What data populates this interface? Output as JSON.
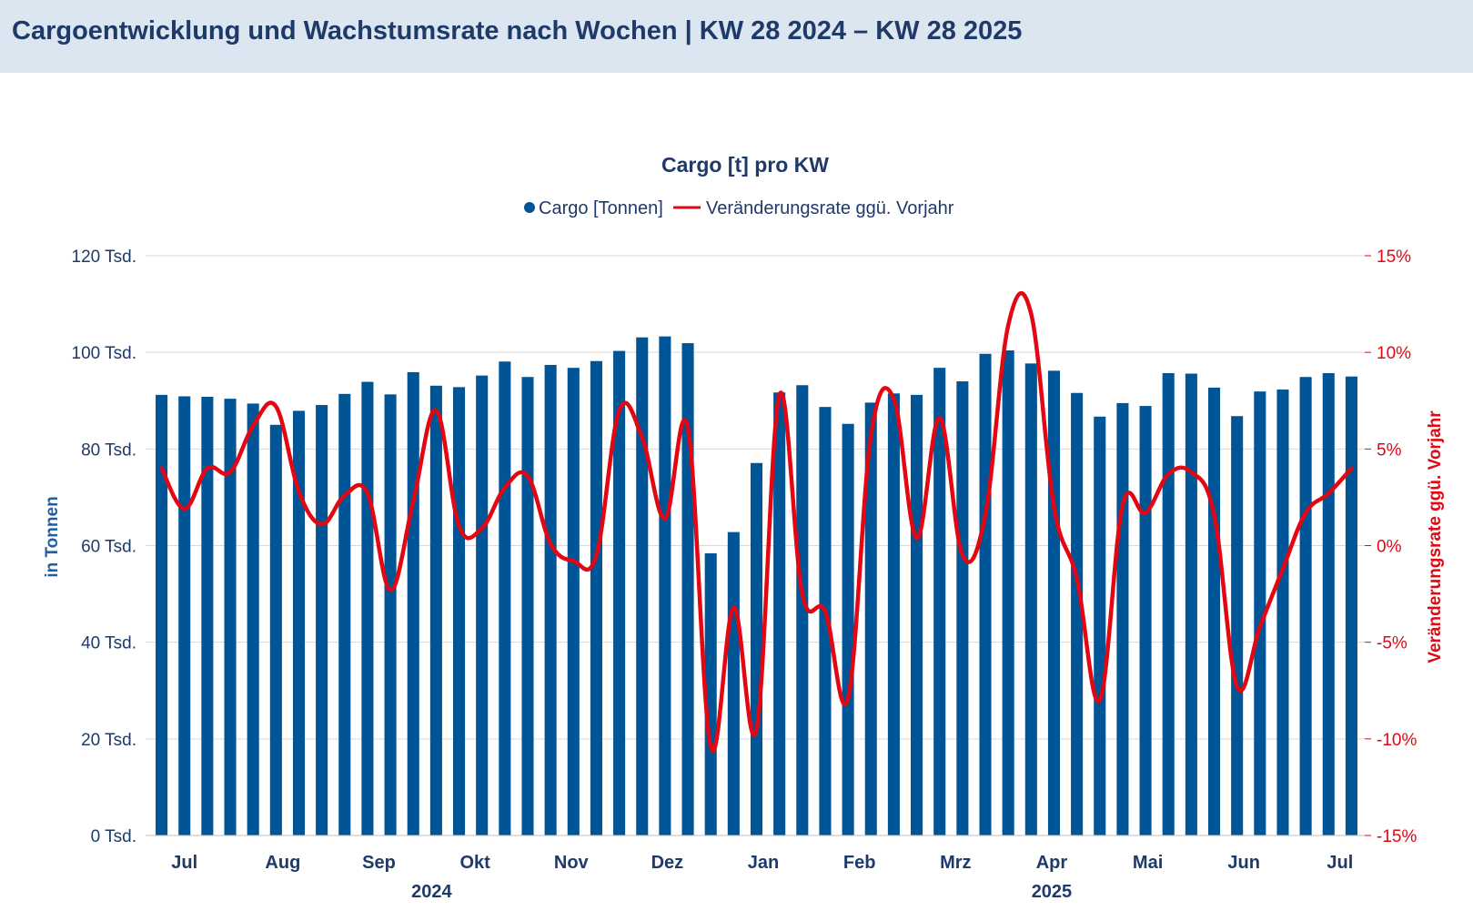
{
  "page_title": "Cargoentwicklung und Wachstumsrate nach Wochen | KW 28 2024 – KW 28 2025",
  "colors": {
    "bar": "#005596",
    "line": "#e30613",
    "header_bg": "#dce6f0",
    "title": "#1f3a68"
  },
  "chart_data": {
    "type": "bar",
    "title": "Cargo [t] pro KW",
    "legend": {
      "position": "top",
      "items": [
        "Cargo [Tonnen]",
        "Veränderungsrate ggü. Vorjahr"
      ]
    },
    "y_left": {
      "label": "in Tonnen",
      "range": [
        0,
        120000
      ],
      "tick_labels": [
        "0 Tsd.",
        "20 Tsd.",
        "40 Tsd.",
        "60 Tsd.",
        "80 Tsd.",
        "100 Tsd.",
        "120 Tsd."
      ]
    },
    "y_right": {
      "label": "Veränderungsrate ggü. Vorjahr",
      "range": [
        -15,
        15
      ],
      "tick_labels": [
        "-15%",
        "-10%",
        "-5%",
        "0%",
        "5%",
        "10%",
        "15%"
      ]
    },
    "grid": true,
    "months": [
      {
        "label": "Jul",
        "week_index": 1
      },
      {
        "label": "Aug",
        "week_index": 5.3
      },
      {
        "label": "Sep",
        "week_index": 9.5
      },
      {
        "label": "Okt",
        "week_index": 13.7
      },
      {
        "label": "Nov",
        "week_index": 17.9
      },
      {
        "label": "Dez",
        "week_index": 22.1
      },
      {
        "label": "Jan",
        "week_index": 26.3
      },
      {
        "label": "Feb",
        "week_index": 30.5
      },
      {
        "label": "Mrz",
        "week_index": 34.7
      },
      {
        "label": "Apr",
        "week_index": 38.9
      },
      {
        "label": "Mai",
        "week_index": 43.1
      },
      {
        "label": "Jun",
        "week_index": 47.3
      },
      {
        "label": "Jul",
        "week_index": 51.5
      }
    ],
    "years": [
      {
        "label": "2024",
        "week_index": 11.8
      },
      {
        "label": "2025",
        "week_index": 38.9
      }
    ],
    "series": [
      {
        "name": "Cargo [Tonnen]",
        "type": "bar",
        "axis": "left",
        "values": [
          91200,
          90900,
          90800,
          90400,
          89400,
          85000,
          87900,
          89100,
          91400,
          93900,
          91300,
          95900,
          93100,
          92800,
          95200,
          98100,
          94900,
          97400,
          96800,
          98200,
          100300,
          103100,
          103300,
          101900,
          58400,
          62800,
          77100,
          91700,
          93200,
          88700,
          85200,
          89600,
          91500,
          91200,
          96800,
          94000,
          99700,
          100400,
          97700,
          96200,
          91600,
          86700,
          89500,
          88900,
          95700,
          95600,
          92700,
          86800,
          91900,
          92300,
          94900,
          95700,
          95000
        ]
      },
      {
        "name": "Veränderungsrate ggü. Vorjahr",
        "type": "line",
        "axis": "right",
        "values": [
          4.0,
          1.9,
          4.0,
          3.8,
          6.2,
          7.2,
          2.8,
          1.1,
          2.6,
          2.7,
          -2.3,
          2.3,
          7.0,
          1.0,
          0.9,
          3.0,
          3.6,
          0.1,
          -0.8,
          -0.5,
          7.0,
          5.6,
          1.4,
          6.1,
          -10.4,
          -3.2,
          -9.5,
          7.8,
          -2.5,
          -3.4,
          -7.9,
          5.7,
          7.6,
          0.4,
          6.6,
          -0.5,
          1.6,
          11.4,
          12.0,
          2.0,
          -1.7,
          -8.0,
          2.1,
          1.7,
          3.7,
          3.8,
          1.6,
          -7.3,
          -4.2,
          -1.2,
          1.7,
          2.7,
          4.0
        ]
      }
    ]
  }
}
